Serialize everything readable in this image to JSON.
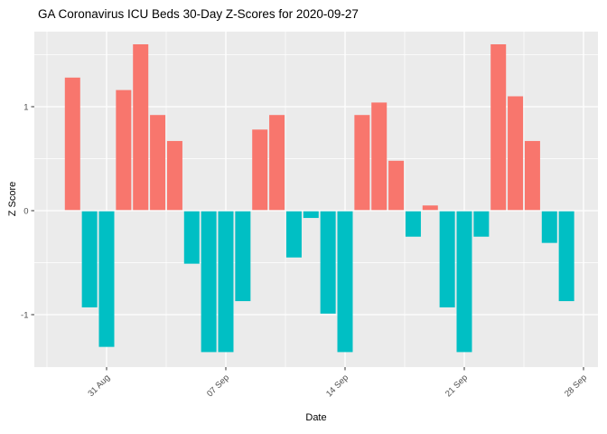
{
  "chart_data": {
    "type": "bar",
    "title": "GA Coronavirus ICU Beds 30-Day Z-Scores for 2020-09-27",
    "xlabel": "Date",
    "ylabel": "Z Score",
    "x": [
      "2020-08-29",
      "2020-08-30",
      "2020-08-31",
      "2020-09-01",
      "2020-09-02",
      "2020-09-03",
      "2020-09-04",
      "2020-09-05",
      "2020-09-06",
      "2020-09-07",
      "2020-09-08",
      "2020-09-09",
      "2020-09-10",
      "2020-09-11",
      "2020-09-12",
      "2020-09-13",
      "2020-09-14",
      "2020-09-15",
      "2020-09-16",
      "2020-09-17",
      "2020-09-18",
      "2020-09-19",
      "2020-09-20",
      "2020-09-21",
      "2020-09-22",
      "2020-09-23",
      "2020-09-24",
      "2020-09-25",
      "2020-09-26",
      "2020-09-27"
    ],
    "values": [
      1.28,
      -0.93,
      -1.31,
      1.16,
      1.6,
      0.92,
      0.67,
      -0.51,
      -1.36,
      -1.36,
      -0.87,
      0.78,
      0.92,
      -0.45,
      -0.07,
      -0.99,
      -1.36,
      0.92,
      1.04,
      0.48,
      -0.25,
      0.05,
      -0.93,
      -1.36,
      -0.25,
      1.6,
      1.1,
      0.67,
      -0.31,
      -0.87
    ],
    "x_tick_labels": [
      "31 Aug",
      "07 Sep",
      "14 Sep",
      "21 Sep",
      "28 Sep"
    ],
    "x_tick_day_indices": [
      2,
      9,
      16,
      23,
      30
    ],
    "y_tick_labels": [
      "-1",
      "0",
      "1"
    ],
    "y_tick_values": [
      -1,
      0,
      1
    ],
    "y_minor_tick_values": [
      -0.5,
      0.5,
      1.5
    ],
    "ylim": [
      -1.51,
      1.72
    ],
    "grid": true,
    "legend": "none",
    "colors": {
      "positive_bar": "#F8766D",
      "negative_bar": "#00BFC4",
      "panel_background": "#EBEBEB",
      "gridline": "#FFFFFF",
      "axis_text": "#4D4D4D",
      "tick_mark": "#333333",
      "title_text": "#000000"
    }
  }
}
